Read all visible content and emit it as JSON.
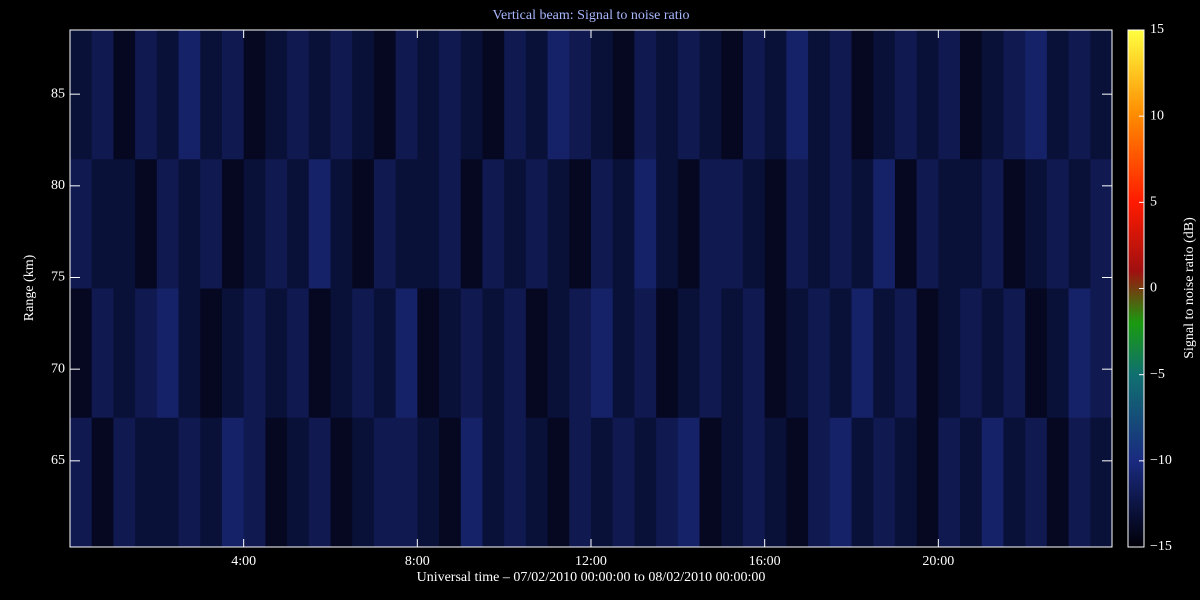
{
  "chart_data": {
    "type": "heatmap",
    "title": "Vertical beam: Signal to noise ratio",
    "x_label": "Universal time – 07/02/2010 00:00:00 to 08/02/2010 00:00:00",
    "y_label": "Range (km)",
    "colorbar_label": "Signal to noise ratio (dB)",
    "title_color": "#a8b8ff",
    "xlim": [
      0,
      24
    ],
    "xticks": [
      {
        "value": 4,
        "label": "4:00"
      },
      {
        "value": 8,
        "label": "8:00"
      },
      {
        "value": 12,
        "label": "12:00"
      },
      {
        "value": 16,
        "label": "16:00"
      },
      {
        "value": 20,
        "label": "20:00"
      }
    ],
    "ylim": [
      60.3,
      88.5
    ],
    "yticks": [
      65,
      70,
      75,
      80,
      85
    ],
    "clim": [
      -15,
      15
    ],
    "cticks": [
      {
        "value": -15,
        "label": "−15"
      },
      {
        "value": -10,
        "label": "−10"
      },
      {
        "value": -5,
        "label": "−5"
      },
      0,
      5,
      10,
      15
    ],
    "colormap": [
      [
        -15,
        "#000008"
      ],
      [
        -10,
        "#1a2a80"
      ],
      [
        -5,
        "#107070"
      ],
      [
        -2,
        "#1a9a10"
      ],
      [
        1,
        "#a01010"
      ],
      [
        5,
        "#ff1a00"
      ],
      [
        10,
        "#ff8a00"
      ],
      [
        15,
        "#ffff40"
      ]
    ],
    "values": [
      [
        -13,
        -12,
        -14,
        -12,
        -13,
        -11,
        -13,
        -12,
        -14,
        -13,
        -12,
        -13,
        -12,
        -13,
        -14,
        -12,
        -13,
        -12,
        -13,
        -14,
        -12,
        -13,
        -11,
        -12,
        -13,
        -14,
        -12,
        -13,
        -12,
        -13,
        -14,
        -12,
        -13,
        -11,
        -13,
        -12,
        -14,
        -13,
        -12,
        -13,
        -12,
        -14,
        -13,
        -12,
        -11,
        -13,
        -12,
        -13
      ],
      [
        -12,
        -13,
        -13,
        -14,
        -12,
        -13,
        -12,
        -14,
        -13,
        -12,
        -13,
        -11,
        -13,
        -14,
        -12,
        -13,
        -13,
        -12,
        -14,
        -12,
        -13,
        -12,
        -13,
        -14,
        -12,
        -13,
        -11,
        -13,
        -14,
        -12,
        -12,
        -13,
        -14,
        -12,
        -13,
        -12,
        -13,
        -11,
        -14,
        -12,
        -13,
        -13,
        -12,
        -14,
        -13,
        -12,
        -13,
        -12
      ],
      [
        -14,
        -12,
        -13,
        -12,
        -11,
        -13,
        -14,
        -13,
        -12,
        -13,
        -12,
        -14,
        -13,
        -12,
        -13,
        -11,
        -14,
        -13,
        -12,
        -13,
        -12,
        -14,
        -13,
        -12,
        -11,
        -13,
        -12,
        -14,
        -13,
        -12,
        -13,
        -12,
        -14,
        -13,
        -12,
        -13,
        -11,
        -13,
        -12,
        -14,
        -13,
        -12,
        -13,
        -12,
        -14,
        -13,
        -11,
        -12
      ],
      [
        -12,
        -14,
        -12,
        -13,
        -13,
        -12,
        -13,
        -11,
        -12,
        -14,
        -13,
        -12,
        -14,
        -13,
        -12,
        -12,
        -13,
        -14,
        -11,
        -13,
        -12,
        -13,
        -14,
        -12,
        -13,
        -12,
        -13,
        -12,
        -11,
        -14,
        -13,
        -12,
        -13,
        -14,
        -12,
        -11,
        -13,
        -12,
        -13,
        -14,
        -12,
        -13,
        -11,
        -13,
        -12,
        -14,
        -12,
        -13
      ]
    ]
  }
}
